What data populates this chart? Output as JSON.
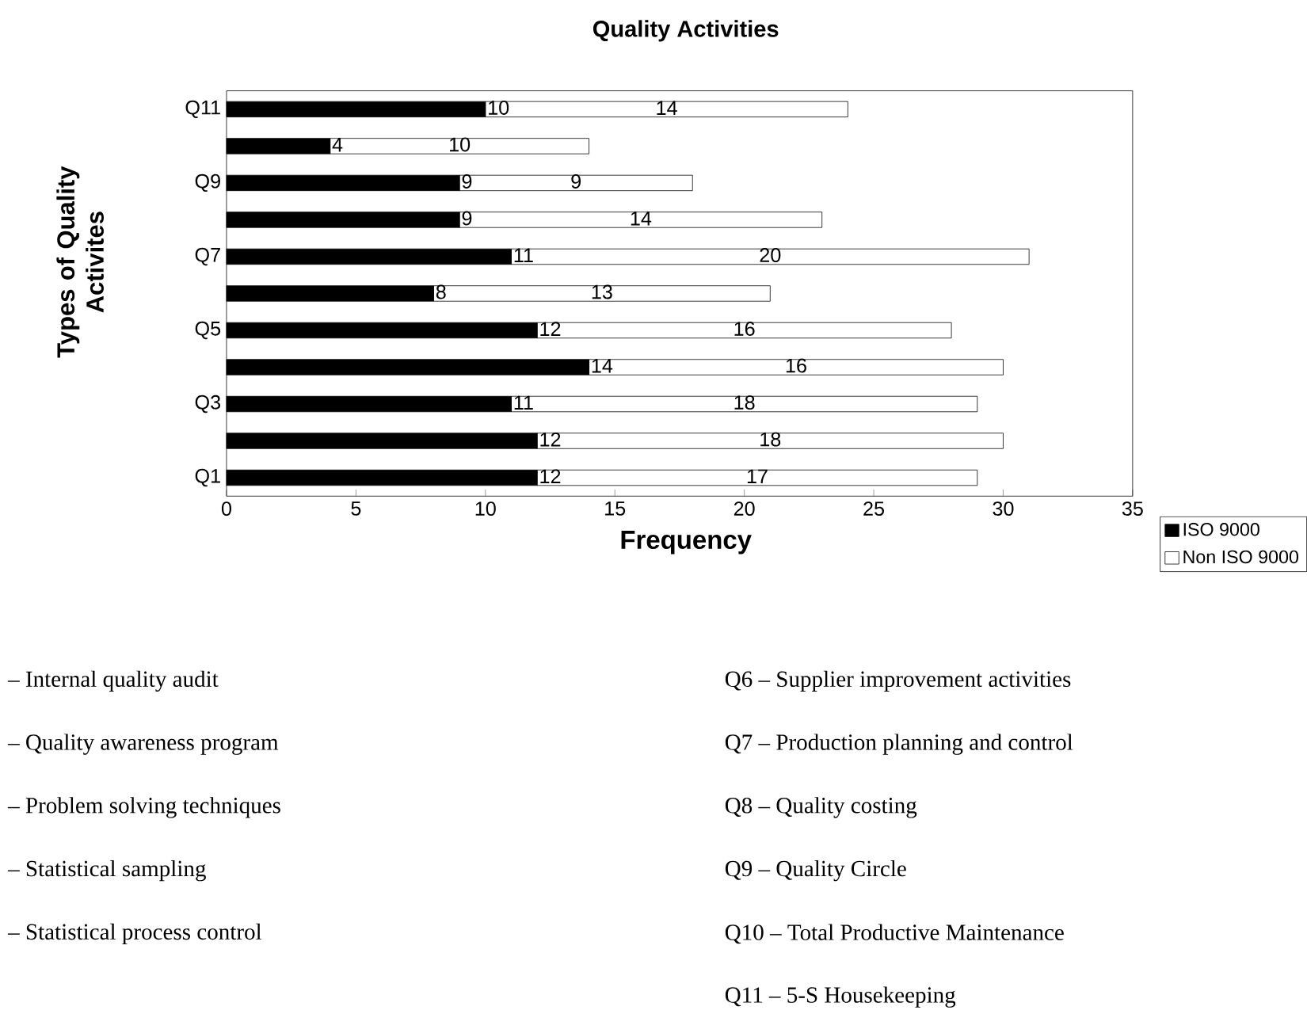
{
  "chart_data": {
    "type": "bar",
    "orientation": "horizontal",
    "stacked": true,
    "title": "Quality Activities",
    "xlabel": "Frequency",
    "ylabel": "Types of Quality Activites",
    "categories": [
      "Q11",
      null,
      "Q9",
      null,
      "Q7",
      null,
      "Q5",
      null,
      "Q3",
      null,
      "Q1"
    ],
    "series": [
      {
        "name": "ISO 9000",
        "color": "#000000",
        "values": [
          10,
          4,
          9,
          9,
          11,
          8,
          12,
          14,
          11,
          12,
          12
        ]
      },
      {
        "name": "Non ISO 9000",
        "color": "#ffffff",
        "values": [
          14,
          10,
          9,
          14,
          20,
          13,
          16,
          16,
          18,
          18,
          17
        ]
      }
    ],
    "xlim": [
      0,
      35
    ],
    "xticks": [
      0,
      5,
      10,
      15,
      20,
      25,
      30,
      35
    ],
    "data_labels": true,
    "legend": "bottom right",
    "annotations": [
      "– Internal quality audit",
      "– Quality awareness program",
      "– Problem solving techniques",
      "– Statistical sampling",
      "– Statistical process control",
      "Q6  – Supplier improvement activities",
      "Q7  – Production planning and control",
      "Q8  – Quality costing",
      "Q9  – Quality Circle",
      "Q10 – Total Productive Maintenance",
      "Q11 – 5-S Housekeeping"
    ]
  }
}
